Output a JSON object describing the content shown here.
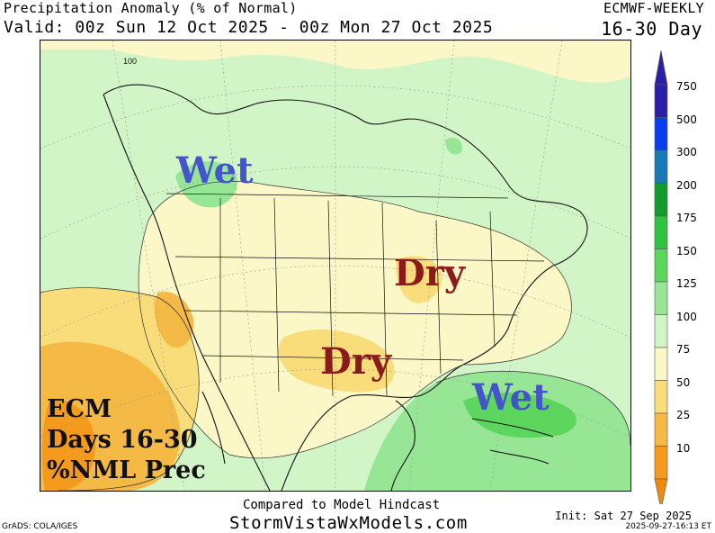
{
  "header": {
    "title": "Precipitation Anomaly (% of Normal)",
    "valid": "Valid: 00z Sun 12 Oct 2025 - 00z Mon 27 Oct 2025",
    "model": "ECMWF-WEEKLY",
    "period": "16-30 Day"
  },
  "map": {
    "contour_label": "100",
    "labels": {
      "wet_northwest": "Wet",
      "dry_great_lakes": "Dry",
      "dry_gulf_coast": "Dry",
      "wet_caribbean": "Wet"
    },
    "caption_lines": [
      "ECM",
      "Days 16-30",
      "%NML Prec"
    ]
  },
  "colorbar": {
    "levels": [
      {
        "value": "750",
        "color": "#2b1fa8"
      },
      {
        "value": "500",
        "color": "#0a3cf0"
      },
      {
        "value": "300",
        "color": "#1a7ab8"
      },
      {
        "value": "200",
        "color": "#159a2e"
      },
      {
        "value": "175",
        "color": "#2fc240"
      },
      {
        "value": "150",
        "color": "#5cd65c"
      },
      {
        "value": "125",
        "color": "#96e696"
      },
      {
        "value": "100",
        "color": "#d2f5c8"
      },
      {
        "value": "75",
        "color": "#fbf7c6"
      },
      {
        "value": "50",
        "color": "#f9dd7a"
      },
      {
        "value": "25",
        "color": "#f5b945"
      },
      {
        "value": "10",
        "color": "#f49a1c"
      }
    ],
    "low_color": "#ef8a0a"
  },
  "footer": {
    "compared": "Compared to Model Hindcast",
    "site": "StormVistaWxModels.com",
    "grads": "GrADS: COLA/IGES",
    "init": "Init: Sat 27 Sep 2025",
    "timestamp": "2025-09-27-16:13 ET"
  }
}
